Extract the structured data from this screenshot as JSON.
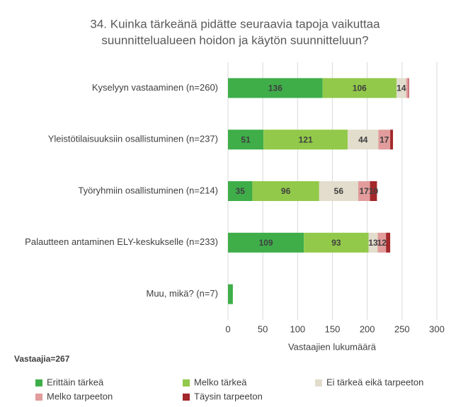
{
  "chart_data": {
    "type": "stacked-bar-horizontal",
    "title": [
      "34. Kuinka tärkeänä pidätte seuraavia tapoja vaikuttaa",
      "suunnittelualueen hoidon ja käytön suunnitteluun?"
    ],
    "categories": [
      "Kyselyyn vastaaminen (n=260)",
      "Yleistötilaisuuksiin osallistuminen (n=237)",
      "Työryhmiin osallistuminen (n=214)",
      "Palautteen antaminen ELY-keskukselle (n=233)",
      "Muu, mikä? (n=7)"
    ],
    "series": [
      {
        "name": "Erittäin tärkeä",
        "color": "#3fae49",
        "values": [
          136,
          51,
          35,
          109,
          7
        ],
        "value_labels": [
          "136",
          "51",
          "35",
          "109",
          null
        ]
      },
      {
        "name": "Melko tärkeä",
        "color": "#92c94a",
        "values": [
          106,
          121,
          96,
          93,
          0
        ],
        "value_labels": [
          "106",
          "121",
          "96",
          "93",
          null
        ]
      },
      {
        "name": "Ei tärkeä eikä tarpeeton",
        "color": "#e2ddcc",
        "values": [
          14,
          44,
          56,
          13,
          0
        ],
        "value_labels": [
          "14",
          "44",
          "56",
          "13",
          null
        ]
      },
      {
        "name": "Melko tarpeeton",
        "color": "#e29c9c",
        "values": [
          3,
          17,
          17,
          12,
          0
        ],
        "value_labels": [
          null,
          "17",
          "17",
          "12",
          null
        ]
      },
      {
        "name": "Täysin tarpeeton",
        "color": "#a3282b",
        "values": [
          1,
          4,
          10,
          6,
          0
        ],
        "value_labels": [
          null,
          null,
          "10",
          null,
          null
        ]
      }
    ],
    "xlabel": "Vastaajien lukumäärä",
    "xlim": [
      0,
      300
    ],
    "xticks": [
      0,
      50,
      100,
      150,
      200,
      250,
      300
    ],
    "grid": true,
    "note": "Vastaajia=267",
    "legend": "bottom"
  }
}
